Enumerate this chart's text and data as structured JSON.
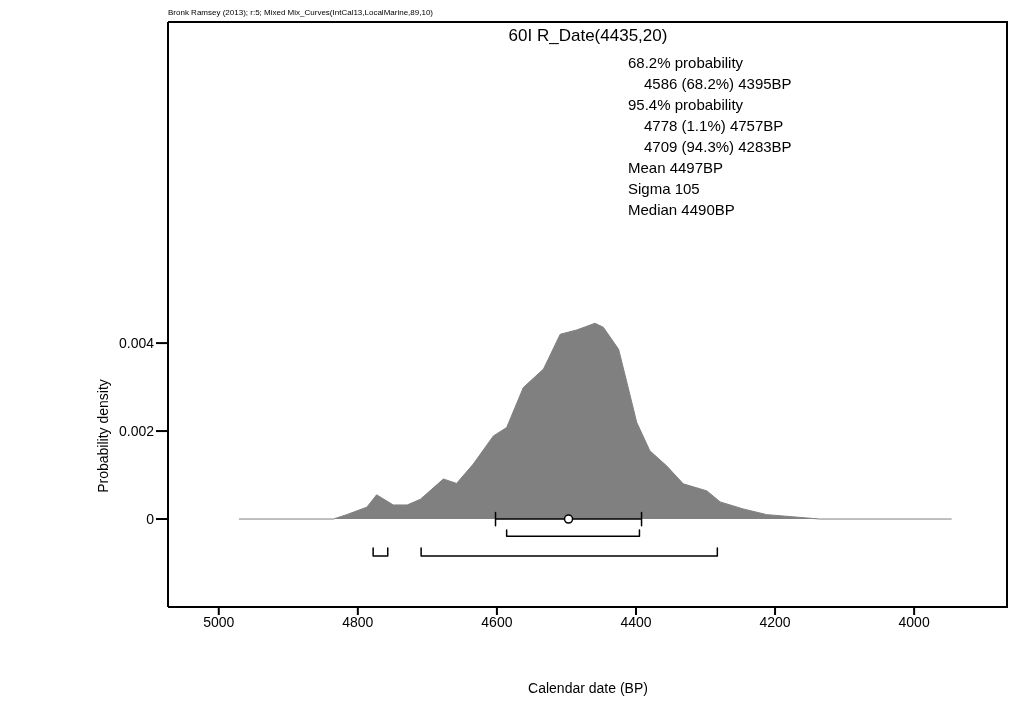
{
  "chart_data": {
    "type": "area",
    "title": "60I R_Date(4435,20)",
    "xlabel": "Calendar date (BP)",
    "ylabel": "Probability density",
    "annotations": [
      "Bronk Ramsey (2013); r:5; Mixed Mix_Curves(IntCal13,LocalMarine,89,10)",
      "68.2% probability",
      "4586 (68.2%) 4395BP",
      "95.4% probability",
      "4778 (1.1%) 4757BP",
      "4709 (94.3%) 4283BP",
      "Mean 4497BP",
      "Sigma 105",
      "Median 4490BP"
    ],
    "xlim": [
      5073,
      3865
    ],
    "xticks": [
      5000,
      4800,
      4600,
      4400,
      4200,
      4000
    ],
    "ylim": [
      -0.002,
      0.0113
    ],
    "yticks": [
      0,
      0.002,
      0.004
    ],
    "grid": false,
    "legend": false,
    "series": [
      {
        "color": "#808080",
        "x": [
          4971,
          4835,
          4816,
          4787,
          4773,
          4749,
          4729,
          4710,
          4677,
          4658,
          4634,
          4605,
          4586,
          4562,
          4533,
          4509,
          4485,
          4459,
          4447,
          4425,
          4413,
          4399,
          4380,
          4356,
          4332,
          4298,
          4279,
          4246,
          4212,
          4136,
          3946
        ],
        "values": [
          0,
          0,
          0.0001,
          0.00027,
          0.00055,
          0.00032,
          0.00032,
          0.00045,
          0.00091,
          0.00081,
          0.00125,
          0.00189,
          0.00208,
          0.00299,
          0.00341,
          0.0042,
          0.0043,
          0.00445,
          0.00436,
          0.00386,
          0.0031,
          0.0022,
          0.00155,
          0.00121,
          0.0008,
          0.00064,
          0.00039,
          0.00023,
          0.0001,
          0,
          0
        ]
      },
      {
        "type": "line",
        "color": "#000000",
        "x": [
          4586,
          4586,
          4395,
          4395
        ],
        "values": [
          -0.00025,
          -0.00039,
          -0.00039,
          -0.00025
        ]
      },
      {
        "type": "line",
        "color": "#000000",
        "x": [
          4778,
          4778,
          4757,
          4757
        ],
        "values": [
          -0.00066,
          -0.00084,
          -0.00084,
          -0.00066
        ]
      },
      {
        "type": "line",
        "color": "#000000",
        "x": [
          4709,
          4709,
          4283,
          4283
        ],
        "values": [
          -0.00066,
          -0.00084,
          -0.00084,
          -0.00066
        ]
      },
      {
        "type": "line",
        "color": "#000000",
        "x": [
          4602,
          4602,
          4602,
          4392,
          4392,
          4392
        ],
        "values": [
          0.00015,
          -0.00015,
          0,
          0,
          -0.00015,
          0.00015
        ]
      },
      {
        "type": "scatter",
        "color": "#000000",
        "marker": "circle",
        "x": [
          4497
        ],
        "values": [
          0
        ]
      }
    ]
  }
}
